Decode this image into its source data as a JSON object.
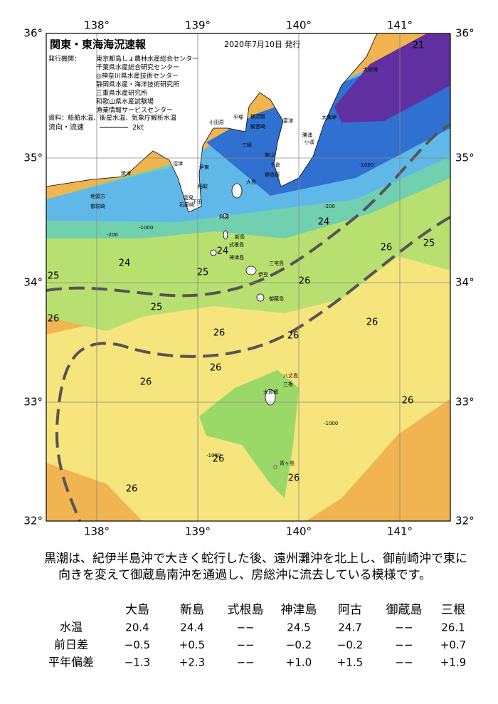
{
  "header": {
    "title": "関東・東海海況速報",
    "date": "2020年7月10日 発行",
    "issuer_label": "発行機関：",
    "issuers": [
      "東京都島しょ農林水産総合センター",
      "千葉県水産総合研究センター",
      "◎神奈川県水産技術センター",
      "静岡県水産・海洋技術研究所",
      "三重県水産研究所",
      "和歌山県水産試験場",
      "漁業情報サービスセンター"
    ],
    "sources": "資料：船舶水温、衛星水温、気象庁解析水温",
    "current_label": "流向・流速",
    "current_scale": "2kt"
  },
  "map": {
    "lon_labels": [
      "138°",
      "139°",
      "140°",
      "141°"
    ],
    "lat_labels": [
      "36°",
      "35°",
      "34°",
      "33°",
      "32°"
    ],
    "temperature_labels": [
      "21",
      "24",
      "26",
      "25",
      "24",
      "25",
      "24",
      "25",
      "26",
      "25",
      "26",
      "26",
      "26",
      "26",
      "26",
      "26",
      "26",
      "26",
      "26",
      "26"
    ],
    "depth_labels": [
      "-1000",
      "-200",
      "-1000",
      "-200",
      "-1000",
      "-1000"
    ],
    "places": [
      "犬吠埼",
      "太東岬",
      "勝浦",
      "小湊",
      "館山",
      "千倉",
      "野島崎",
      "富津",
      "横須賀",
      "観音崎",
      "平塚",
      "三崎",
      "小田原",
      "伊東",
      "稲取",
      "下田",
      "雲見",
      "石廊崎",
      "沼津",
      "焼津",
      "地頭方",
      "御前崎",
      "大島",
      "利島",
      "新島",
      "式根島",
      "神津島",
      "三宅島",
      "伊豆",
      "御蔵島",
      "八丈島",
      "大賀郷",
      "三根",
      "青ヶ島"
    ]
  },
  "summary": [
    "黒潮は、紀伊半島沖で大きく蛇行した後、遠州灘沖を北上し、御前崎沖で東に",
    "向きを変えて御蔵島南沖を通過し、房総沖に流去している模様です。"
  ],
  "table": {
    "columns": [
      "大島",
      "新島",
      "式根島",
      "神津島",
      "阿古",
      "御蔵島",
      "三根"
    ],
    "rows": [
      {
        "label": "水温",
        "cells": [
          "20.4",
          "24.4",
          "−−",
          "24.5",
          "24.7",
          "−−",
          "26.1"
        ]
      },
      {
        "label": "前日差",
        "cells": [
          "−0.5",
          "+0.5",
          "−−",
          "−0.2",
          "−0.2",
          "−−",
          "+0.7"
        ]
      },
      {
        "label": "平年偏差",
        "cells": [
          "−1.3",
          "+2.3",
          "−−",
          "+1.0",
          "+1.5",
          "−−",
          "+1.9"
        ]
      }
    ]
  }
}
